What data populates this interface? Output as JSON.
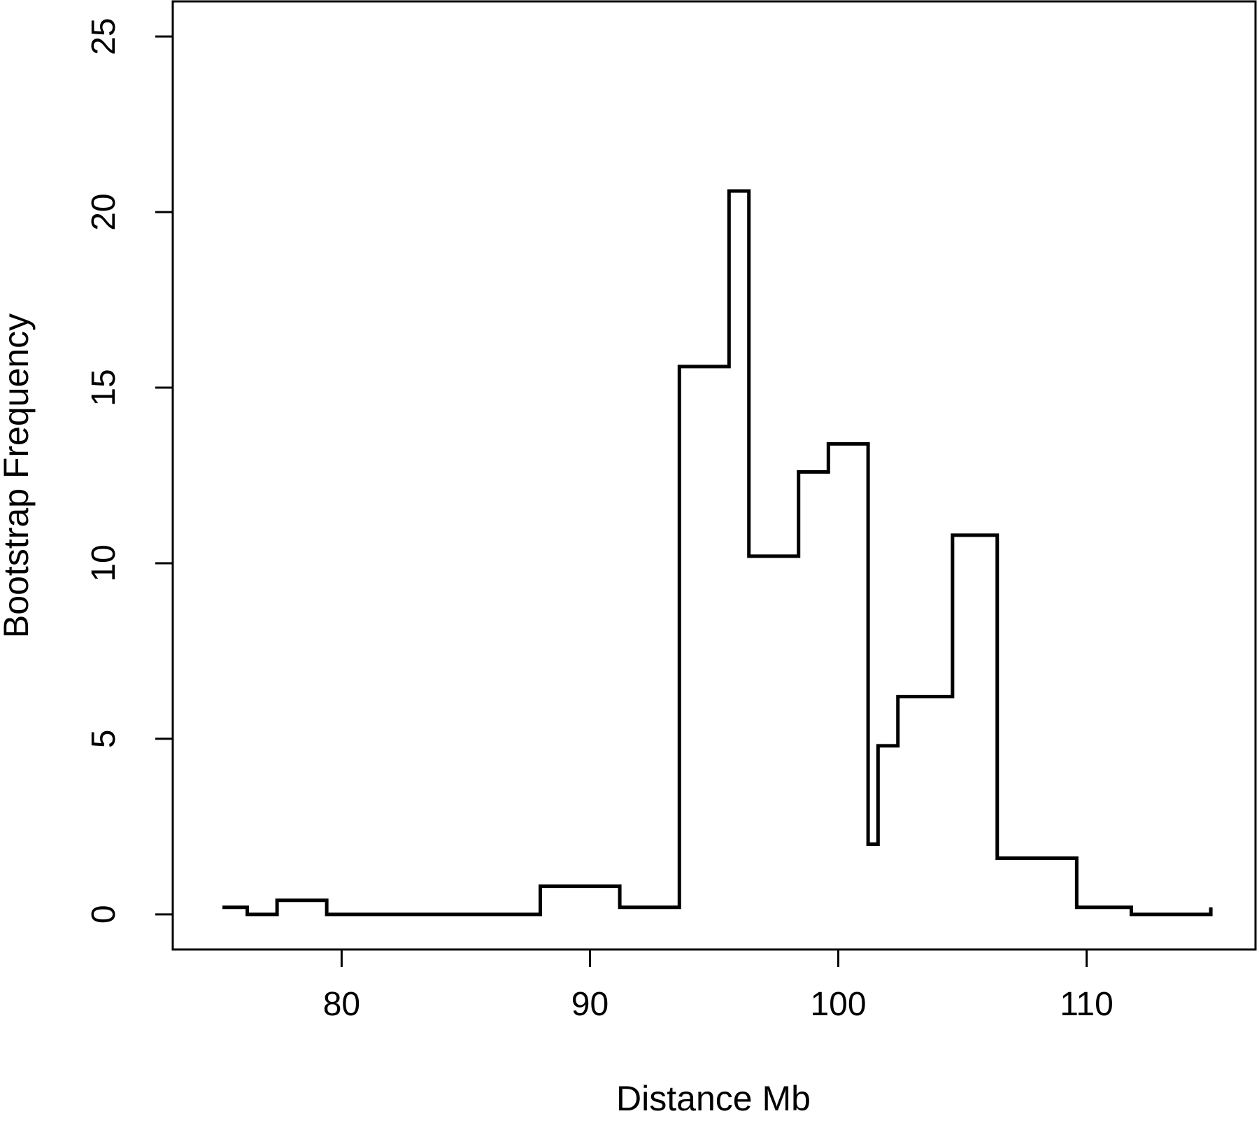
{
  "chart_data": {
    "type": "line",
    "style": "step",
    "xlabel": "Distance Mb",
    "ylabel": "Bootstrap Frequency",
    "xlim": [
      73.2,
      116.8
    ],
    "ylim": [
      -1,
      26
    ],
    "x_ticks": [
      80,
      90,
      100,
      110
    ],
    "x_tick_labels": [
      "80",
      "90",
      "100",
      "110"
    ],
    "y_ticks": [
      0,
      5,
      10,
      15,
      20,
      25
    ],
    "y_tick_labels": [
      "0",
      "5",
      "10",
      "15",
      "20",
      "25"
    ],
    "grid": false,
    "legend": false,
    "line_color": "#000000",
    "series": [
      {
        "x": [
          75.2,
          76.2,
          77.4,
          79.4,
          88.0,
          91.2,
          93.6,
          95.6,
          96.4,
          98.4,
          99.6,
          101.2,
          101.6,
          102.4,
          104.6,
          106.4,
          109.6,
          111.8,
          115.0
        ],
        "y": [
          0.2,
          0.0,
          0.4,
          0.0,
          0.8,
          0.2,
          15.6,
          20.6,
          10.2,
          12.6,
          13.4,
          2.0,
          4.8,
          6.2,
          10.8,
          1.6,
          0.2,
          0.0,
          0.2
        ]
      }
    ]
  }
}
